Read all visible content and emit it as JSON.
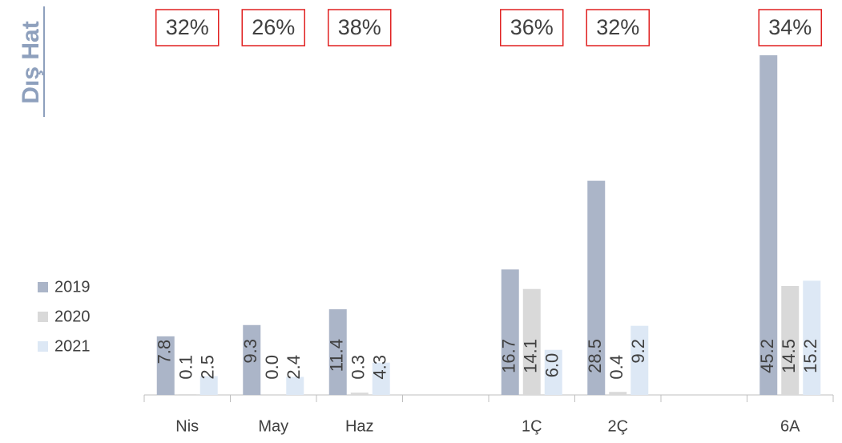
{
  "chart_data": {
    "type": "bar",
    "title": "Dış Hat",
    "categories": [
      "Nis",
      "May",
      "Haz",
      null,
      "1Ç",
      "2Ç",
      null,
      "6A"
    ],
    "series": [
      {
        "name": "2019",
        "color": "#abb5c8",
        "values": [
          7.8,
          9.3,
          11.4,
          null,
          16.7,
          28.5,
          null,
          45.2
        ],
        "value_labels": [
          "7.8",
          "9.3",
          "11.4",
          null,
          "16.7",
          "28.5",
          null,
          "45.2"
        ]
      },
      {
        "name": "2020",
        "color": "#d9d9d9",
        "values": [
          0.1,
          0.0,
          0.3,
          null,
          14.1,
          0.4,
          null,
          14.5
        ],
        "value_labels": [
          "0.1",
          "0.0",
          "0.3",
          null,
          "14.1",
          "0.4",
          null,
          "14.5"
        ]
      },
      {
        "name": "2021",
        "color": "#dde8f5",
        "values": [
          2.5,
          2.4,
          4.3,
          null,
          6.0,
          9.2,
          null,
          15.2
        ],
        "value_labels": [
          "2.5",
          "2.4",
          "4.3",
          null,
          "6.0",
          "9.2",
          null,
          "15.2"
        ]
      }
    ],
    "annotations": [
      "32%",
      "26%",
      "38%",
      "36%",
      "32%",
      "34%"
    ],
    "legend": "left"
  }
}
